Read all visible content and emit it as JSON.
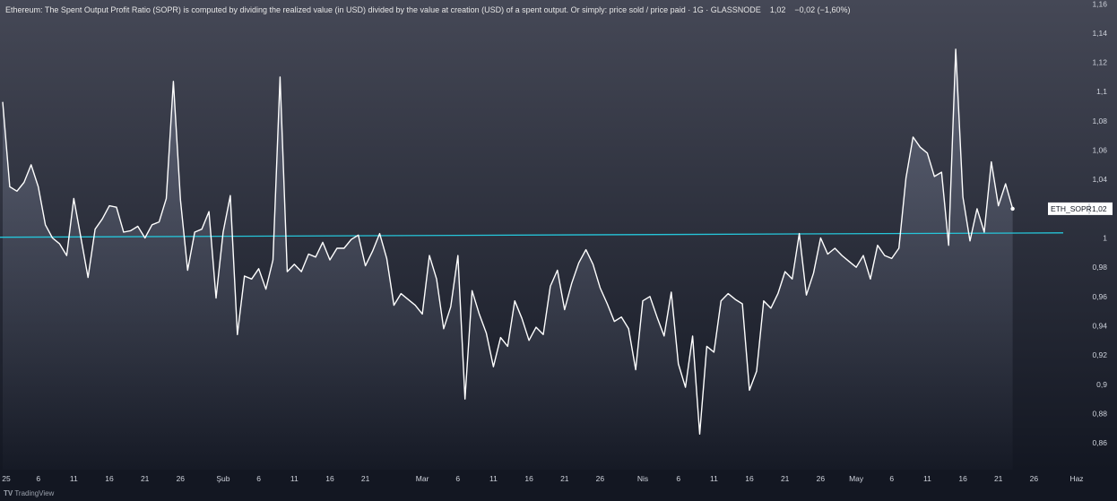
{
  "header": {
    "description": "Ethereum: The Spent Output Profit Ratio (SOPR) is computed by dividing the realized value (in USD) divided by the value at creation (USD) of a spent output. Or simply: price sold / price paid",
    "interval": "1G",
    "source": "GLASSNODE",
    "last_value": "1,02",
    "change": "−0,02 (−1,60%)"
  },
  "footer": {
    "brand": "TradingView"
  },
  "colors": {
    "background_top": "#454856",
    "background_bottom": "#131722",
    "line": "#ffffff",
    "baseline": "#26c6da",
    "label_bg": "#ffffff",
    "label_text": "#131722"
  },
  "chart_data": {
    "type": "line",
    "series": [
      {
        "name": "ETH_SOPR",
        "values": [
          1.093,
          1.035,
          1.032,
          1.038,
          1.05,
          1.035,
          1.009,
          1.0,
          0.996,
          0.988,
          1.027,
          1.0,
          0.973,
          1.006,
          1.013,
          1.022,
          1.021,
          1.004,
          1.005,
          1.008,
          1.0,
          1.009,
          1.011,
          1.027,
          1.107,
          1.026,
          0.978,
          1.004,
          1.006,
          1.018,
          0.959,
          1.004,
          1.029,
          0.934,
          0.974,
          0.972,
          0.979,
          0.965,
          0.985,
          1.11,
          0.977,
          0.982,
          0.977,
          0.989,
          0.987,
          0.997,
          0.985,
          0.993,
          0.993,
          0.999,
          1.002,
          0.981,
          0.991,
          1.003,
          0.986,
          0.954,
          0.962,
          0.958,
          0.954,
          0.948,
          0.988,
          0.972,
          0.938,
          0.953,
          0.988,
          0.89,
          0.964,
          0.948,
          0.935,
          0.912,
          0.932,
          0.926,
          0.957,
          0.945,
          0.93,
          0.939,
          0.934,
          0.967,
          0.978,
          0.951,
          0.969,
          0.983,
          0.992,
          0.982,
          0.966,
          0.955,
          0.943,
          0.946,
          0.938,
          0.91,
          0.957,
          0.96,
          0.946,
          0.933,
          0.963,
          0.914,
          0.898,
          0.933,
          0.866,
          0.926,
          0.922,
          0.957,
          0.962,
          0.958,
          0.955,
          0.896,
          0.909,
          0.957,
          0.952,
          0.962,
          0.977,
          0.972,
          1.003,
          0.961,
          0.976,
          1.0,
          0.989,
          0.993,
          0.988,
          0.984,
          0.98,
          0.988,
          0.972,
          0.995,
          0.988,
          0.986,
          0.993,
          1.041,
          1.069,
          1.062,
          1.058,
          1.042,
          1.045,
          0.995,
          1.129,
          1.028,
          0.998,
          1.02,
          1.004,
          1.052,
          1.022,
          1.037,
          1.02
        ]
      }
    ],
    "baseline": {
      "start": 1.0005,
      "end": 1.0035
    },
    "yaxis": {
      "min": 0.846,
      "max": 1.162,
      "ticks": [
        "1,16",
        "1,14",
        "1,12",
        "1,1",
        "1,08",
        "1,06",
        "1,04",
        "1,02",
        "1",
        "0,98",
        "0,96",
        "0,94",
        "0,92",
        "0,9",
        "0,88",
        "0,86"
      ],
      "tick_values": [
        1.16,
        1.14,
        1.12,
        1.1,
        1.08,
        1.06,
        1.04,
        1.02,
        1.0,
        0.98,
        0.96,
        0.94,
        0.92,
        0.9,
        0.88,
        0.86
      ]
    },
    "xaxis": {
      "ticks": [
        {
          "label": "25",
          "index": 0
        },
        {
          "label": "6",
          "index": 5
        },
        {
          "label": "11",
          "index": 10
        },
        {
          "label": "16",
          "index": 15
        },
        {
          "label": "21",
          "index": 20
        },
        {
          "label": "26",
          "index": 25
        },
        {
          "label": "Şub",
          "index": 31
        },
        {
          "label": "6",
          "index": 36
        },
        {
          "label": "11",
          "index": 41
        },
        {
          "label": "16",
          "index": 46
        },
        {
          "label": "21",
          "index": 51
        },
        {
          "label": "Mar",
          "index": 59
        },
        {
          "label": "6",
          "index": 64
        },
        {
          "label": "11",
          "index": 69
        },
        {
          "label": "16",
          "index": 74
        },
        {
          "label": "21",
          "index": 79
        },
        {
          "label": "26",
          "index": 84
        },
        {
          "label": "Nis",
          "index": 90
        },
        {
          "label": "6",
          "index": 95
        },
        {
          "label": "11",
          "index": 100
        },
        {
          "label": "16",
          "index": 105
        },
        {
          "label": "21",
          "index": 110
        },
        {
          "label": "26",
          "index": 115
        },
        {
          "label": "May",
          "index": 120
        },
        {
          "label": "6",
          "index": 125
        },
        {
          "label": "11",
          "index": 130
        },
        {
          "label": "16",
          "index": 135
        },
        {
          "label": "21",
          "index": 140
        },
        {
          "label": "26",
          "index": 145
        },
        {
          "label": "Haz",
          "index": 151
        }
      ]
    },
    "last_label": {
      "name": "ETH_SOPR",
      "value": "1,02"
    }
  }
}
